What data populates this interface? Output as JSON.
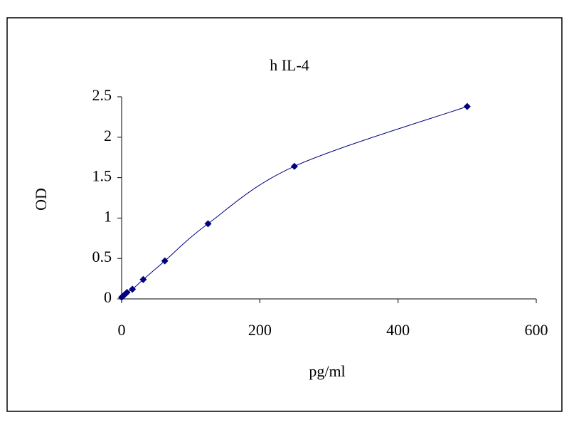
{
  "chart_data": {
    "type": "line",
    "title": "h IL-4",
    "x_label": "pg/ml",
    "y_label": "OD",
    "x": [
      0,
      3.9,
      7.8,
      15.6,
      31.25,
      62.5,
      125,
      250,
      500
    ],
    "series": [
      {
        "name": "OD",
        "color": "#000080",
        "values": [
          0.02,
          0.05,
          0.08,
          0.12,
          0.24,
          0.47,
          0.93,
          1.64,
          2.38
        ]
      }
    ],
    "xlim": [
      0,
      600
    ],
    "xticks": [
      0,
      200,
      400,
      600
    ],
    "ylim": [
      0,
      2.5
    ],
    "yticks": [
      0,
      0.5,
      1,
      1.5,
      2,
      2.5
    ],
    "grid": false,
    "smooth": true
  }
}
